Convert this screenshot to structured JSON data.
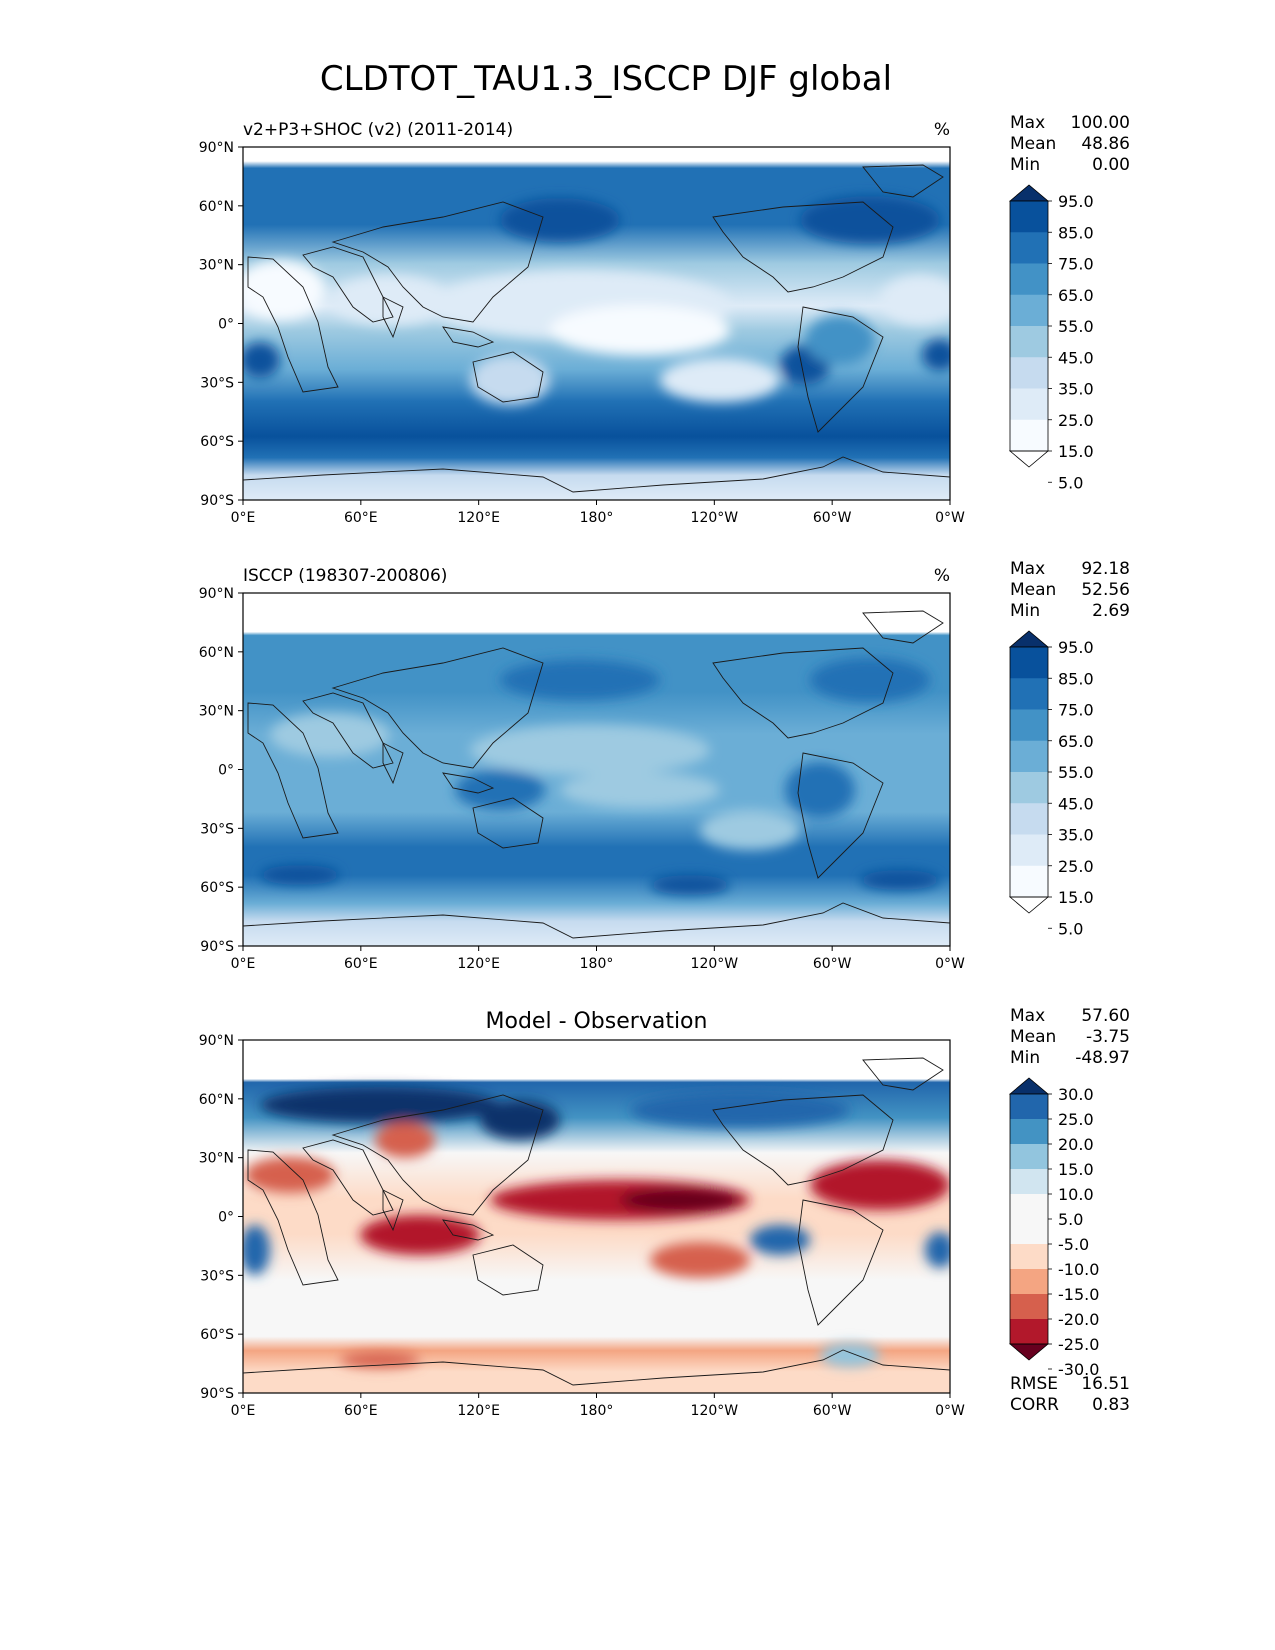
{
  "figure": {
    "title": "CLDTOT_TAU1.3_ISCCP DJF global"
  },
  "panels": [
    {
      "id": "model",
      "title_left": "v2+P3+SHOC (v2) (2011-2014)",
      "title_center": "",
      "units": "%",
      "stats": [
        {
          "label": "Max",
          "value": "100.00"
        },
        {
          "label": "Mean",
          "value": "48.86"
        },
        {
          "label": "Min",
          "value": "0.00"
        }
      ],
      "colorbar": {
        "labels": [
          "95.0",
          "85.0",
          "75.0",
          "65.0",
          "55.0",
          "45.0",
          "35.0",
          "25.0",
          "15.0",
          "5.0"
        ],
        "colors": [
          "#08306b",
          "#08519c",
          "#2171b5",
          "#4292c6",
          "#6baed6",
          "#9ecae1",
          "#c6dbef",
          "#deebf7",
          "#f7fbff",
          "#ffffff"
        ]
      },
      "extra": []
    },
    {
      "id": "obs",
      "title_left": "ISCCP (198307-200806)",
      "title_center": "",
      "units": "%",
      "stats": [
        {
          "label": "Max",
          "value": "92.18"
        },
        {
          "label": "Mean",
          "value": "52.56"
        },
        {
          "label": "Min",
          "value": "2.69"
        }
      ],
      "colorbar": {
        "labels": [
          "95.0",
          "85.0",
          "75.0",
          "65.0",
          "55.0",
          "45.0",
          "35.0",
          "25.0",
          "15.0",
          "5.0"
        ],
        "colors": [
          "#08306b",
          "#08519c",
          "#2171b5",
          "#4292c6",
          "#6baed6",
          "#9ecae1",
          "#c6dbef",
          "#deebf7",
          "#f7fbff",
          "#ffffff"
        ]
      },
      "extra": []
    },
    {
      "id": "diff",
      "title_left": "",
      "title_center": "Model - Observation",
      "units": "",
      "stats": [
        {
          "label": "Max",
          "value": "57.60"
        },
        {
          "label": "Mean",
          "value": "-3.75"
        },
        {
          "label": "Min",
          "value": "-48.97"
        }
      ],
      "colorbar": {
        "labels": [
          "30.0",
          "25.0",
          "20.0",
          "15.0",
          "10.0",
          "5.0",
          "-5.0",
          "-10.0",
          "-15.0",
          "-20.0",
          "-25.0",
          "-30.0"
        ],
        "colors": [
          "#08306b",
          "#2166ac",
          "#4393c3",
          "#92c5de",
          "#d1e5f0",
          "#f7f7f7",
          "#f7f7f7",
          "#fddbc7",
          "#f4a582",
          "#d6604d",
          "#b2182b",
          "#67001f"
        ]
      },
      "extra": [
        {
          "label": "RMSE",
          "value": "16.51"
        },
        {
          "label": "CORR",
          "value": "0.83"
        }
      ]
    }
  ],
  "axes": {
    "lat_ticks": [
      "90°N",
      "60°N",
      "30°N",
      "0°",
      "30°S",
      "60°S",
      "90°S"
    ],
    "lon_ticks": [
      "0°E",
      "60°E",
      "120°E",
      "180°",
      "120°W",
      "60°W",
      "0°W"
    ]
  }
}
